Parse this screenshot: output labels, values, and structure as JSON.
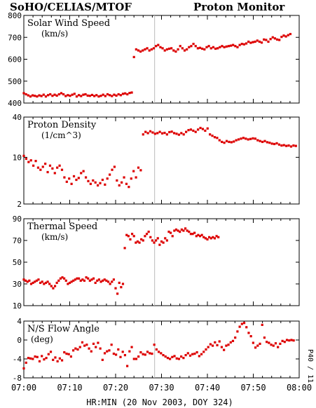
{
  "header": {
    "left": "SoHO/CELIAS/MTOF",
    "right": "Proton Monitor"
  },
  "chart_data": {
    "type": "scatter",
    "x_unit": "minutes after 07:00",
    "x_range": [
      0,
      60
    ],
    "x_ticks": [
      "07:00",
      "07:10",
      "07:20",
      "07:30",
      "07:40",
      "07:50",
      "08:00"
    ],
    "xlabel": "HR:MIN (20 Nov 2003, DOY 324)",
    "marker_color": "#dd0000",
    "guide_x": 28.5,
    "side_label": "P40 / 11",
    "panels": [
      {
        "title": "Solar Wind Speed",
        "unit": "(km/s)",
        "scale": "linear",
        "ylim": [
          400,
          800
        ],
        "yticks": [
          "400",
          "500",
          "600",
          "700",
          "800"
        ],
        "ytick_values": [
          400,
          500,
          600,
          700,
          800
        ],
        "y": [
          445,
          440,
          435,
          430,
          435,
          433,
          430,
          435,
          432,
          438,
          430,
          436,
          440,
          433,
          438,
          434,
          440,
          445,
          440,
          432,
          436,
          433,
          438,
          442,
          430,
          436,
          432,
          438,
          440,
          434,
          433,
          437,
          432,
          436,
          430,
          433,
          438,
          432,
          440,
          436,
          432,
          438,
          434,
          440,
          436,
          442,
          444,
          440,
          446,
          448,
          610,
          645,
          640,
          635,
          640,
          645,
          650,
          640,
          645,
          650,
          660,
          665,
          655,
          650,
          640,
          645,
          648,
          650,
          640,
          635,
          645,
          660,
          650,
          640,
          645,
          655,
          660,
          670,
          660,
          650,
          652,
          648,
          645,
          655,
          660,
          650,
          655,
          648,
          650,
          655,
          660,
          655,
          658,
          660,
          662,
          665,
          660,
          655,
          665,
          670,
          668,
          672,
          680,
          675,
          678,
          680,
          685,
          680,
          676,
          690,
          688,
          680,
          692,
          700,
          695,
          690,
          688,
          702,
          708,
          704,
          710,
          715
        ],
        "x_start": 0,
        "x_step": 0.48
      },
      {
        "title": "Proton Density",
        "unit": "(1/cm^3)",
        "scale": "log",
        "ylim": [
          2,
          40
        ],
        "yticks": [
          "2",
          "10",
          "40"
        ],
        "ytick_values": [
          2,
          10,
          40
        ],
        "y": [
          10.5,
          9.5,
          8.5,
          9.0,
          7.5,
          8.8,
          7.0,
          6.5,
          7.2,
          8.0,
          6.0,
          7.5,
          6.8,
          5.8,
          7.0,
          7.5,
          6.5,
          5.0,
          4.3,
          4.8,
          4.0,
          5.2,
          4.6,
          4.9,
          5.8,
          6.2,
          5.0,
          4.4,
          4.0,
          4.5,
          4.2,
          3.8,
          4.1,
          4.6,
          3.9,
          4.8,
          5.5,
          6.5,
          7.2,
          4.5,
          3.8,
          4.2,
          5.0,
          4.0,
          3.6,
          4.8,
          6.2,
          5.0,
          7.0,
          6.4,
          22.0,
          24.0,
          23.0,
          24.5,
          23.5,
          22.5,
          23.0,
          24.0,
          22.8,
          23.2,
          22.0,
          23.8,
          24.2,
          23.0,
          22.5,
          21.8,
          23.0,
          22.0,
          24.0,
          25.5,
          26.0,
          25.0,
          24.0,
          26.0,
          27.5,
          26.5,
          25.0,
          27.0,
          22.0,
          21.0,
          20.0,
          19.5,
          18.0,
          17.0,
          16.5,
          17.5,
          17.0,
          16.8,
          17.2,
          18.0,
          18.5,
          19.0,
          19.5,
          19.0,
          18.5,
          18.8,
          19.2,
          19.0,
          18.0,
          17.5,
          17.0,
          17.5,
          16.8,
          16.5,
          16.0,
          15.8,
          16.2,
          15.5,
          15.0,
          15.2,
          14.8,
          15.0,
          14.5,
          15.0,
          14.8
        ],
        "x_start": 0,
        "x_step": 0.52
      },
      {
        "title": "Thermal Speed",
        "unit": "(km/s)",
        "scale": "linear",
        "ylim": [
          10,
          90
        ],
        "yticks": [
          "10",
          "30",
          "50",
          "70",
          "90"
        ],
        "ytick_values": [
          10,
          30,
          50,
          70,
          90
        ],
        "y": [
          34,
          33,
          32,
          33,
          30,
          31,
          32,
          33,
          34,
          31,
          32,
          30,
          31,
          32,
          30,
          28,
          26,
          28,
          31,
          33,
          35,
          36,
          35,
          33,
          30,
          31,
          32,
          33,
          34,
          35,
          35,
          33,
          34,
          33,
          36,
          35,
          33,
          34,
          35,
          31,
          33,
          34,
          32,
          33,
          34,
          33,
          32,
          30,
          32,
          34,
          26,
          21,
          31,
          27,
          30,
          63,
          75,
          74,
          71,
          76,
          74,
          68,
          69,
          68,
          71,
          70,
          74,
          76,
          78,
          73,
          70,
          68,
          70,
          72,
          66,
          69,
          68,
          72,
          70,
          78,
          77,
          74,
          79,
          80,
          79,
          78,
          80,
          79,
          81,
          79,
          78,
          76,
          76,
          77,
          74,
          75,
          74,
          75,
          73,
          72,
          71,
          73,
          72,
          73,
          72,
          74,
          73
        ],
        "x_start": 0,
        "x_step": 0.4
      },
      {
        "title": "N/S Flow Angle",
        "unit": "(deg)",
        "scale": "linear",
        "ylim": [
          -8,
          4
        ],
        "yticks": [
          "-8",
          "-4",
          "0",
          "4"
        ],
        "ytick_values": [
          -8,
          -4,
          0,
          4
        ],
        "y": [
          -6.0,
          -4.8,
          -3.8,
          -3.9,
          -4.0,
          -3.5,
          -3.6,
          -4.5,
          -3.4,
          -4.1,
          -3.8,
          -3.0,
          -2.5,
          -4.2,
          -3.7,
          -4.5,
          -3.9,
          -4.3,
          -2.6,
          -2.9,
          -3.0,
          -3.5,
          -2.2,
          -1.8,
          -2.0,
          -1.5,
          -0.5,
          -1.2,
          -1.0,
          -1.8,
          -2.4,
          -0.8,
          -1.5,
          -0.6,
          -1.8,
          -4.2,
          -2.8,
          -2.4,
          -2.2,
          -1.0,
          -2.9,
          -3.1,
          -2.0,
          -3.6,
          -2.5,
          -3.2,
          -5.5,
          -2.4,
          -1.5,
          -4.0,
          -4.0,
          -3.5,
          -2.6,
          -3.0,
          -3.1,
          -2.5,
          -2.8,
          -2.9,
          -1.0,
          -2.0,
          -2.5,
          -2.8,
          -3.2,
          -3.5,
          -3.8,
          -4.0,
          -3.6,
          -3.4,
          -3.9,
          -4.0,
          -3.5,
          -3.8,
          -3.2,
          -2.8,
          -3.3,
          -3.0,
          -2.9,
          -2.6,
          -3.4,
          -3.0,
          -2.5,
          -2.0,
          -1.5,
          -0.9,
          -1.2,
          -0.5,
          -1.1,
          -0.3,
          -1.5,
          -2.1,
          -1.2,
          -1.0,
          -0.5,
          -0.2,
          0.5,
          1.8,
          2.8,
          3.4,
          3.6,
          2.7,
          1.5,
          0.8,
          -0.6,
          -1.6,
          -1.2,
          -0.8,
          3.2,
          0.5,
          -0.4,
          -0.6,
          -1.0,
          -1.2,
          -0.7,
          -1.5,
          -0.8,
          -0.2,
          -0.4,
          0.0,
          -0.1,
          0.0,
          -0.1
        ],
        "x_start": 0,
        "x_step": 0.49
      }
    ]
  }
}
